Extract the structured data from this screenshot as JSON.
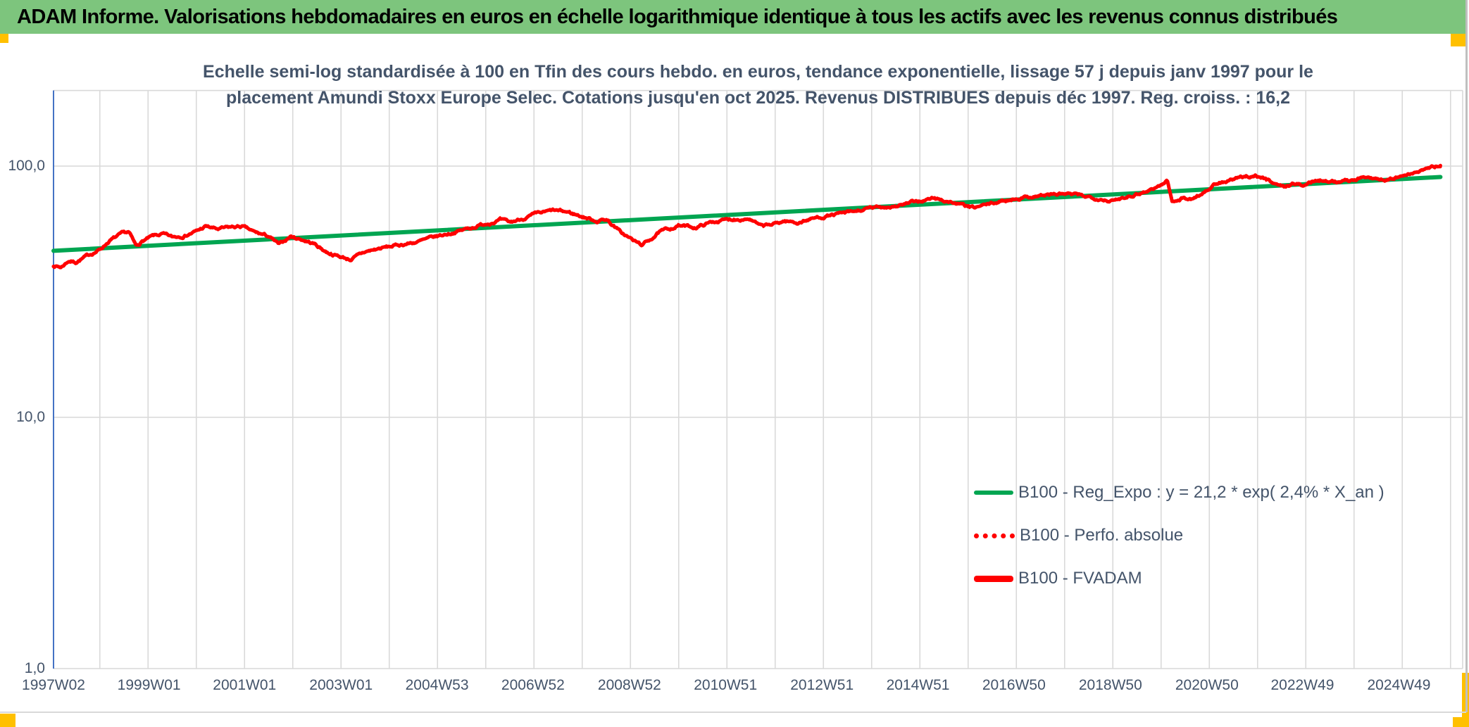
{
  "banner": {
    "title": "ADAM Informe. Valorisations hebdomadaires en euros en échelle logarithmique identique à tous les actifs avec les revenus connus distribués",
    "bg_color": "#7DC57D",
    "text_color": "#000000"
  },
  "accent_color": "#FFC000",
  "colors": {
    "text": "#44546A",
    "grid": "#D9D9D9",
    "y_axis_line": "#4472C4",
    "red": "#FF0000",
    "green": "#00A551"
  },
  "chart_data": {
    "type": "line",
    "title_lines": [
      "Echelle semi-log standardisée à 100 en Tfin des cours hebdo. en euros, tendance exponentielle, lissage 57 j depuis janv 1997 pour le",
      "placement Amundi Stoxx Europe Selec. Cotations jusqu'en oct 2025. Revenus DISTRIBUES depuis déc 1997. Reg. croiss. : 16,2"
    ],
    "x_axis": {
      "label_type": "ISO week (yearWweek)",
      "ticks": [
        {
          "label": "1997W02",
          "year": 1997.04
        },
        {
          "label": "1999W01",
          "year": 1999.02
        },
        {
          "label": "2001W01",
          "year": 2001.0
        },
        {
          "label": "2003W01",
          "year": 2003.0
        },
        {
          "label": "2004W53",
          "year": 2004.99
        },
        {
          "label": "2006W52",
          "year": 2006.98
        },
        {
          "label": "2008W52",
          "year": 2008.98
        },
        {
          "label": "2010W51",
          "year": 2010.97
        },
        {
          "label": "2012W51",
          "year": 2012.97
        },
        {
          "label": "2014W51",
          "year": 2014.96
        },
        {
          "label": "2016W50",
          "year": 2016.95
        },
        {
          "label": "2018W50",
          "year": 2018.95
        },
        {
          "label": "2020W50",
          "year": 2020.95
        },
        {
          "label": "2022W49",
          "year": 2022.93
        },
        {
          "label": "2024W49",
          "year": 2024.93
        }
      ],
      "gridlines": "yearly, light gray, vertical"
    },
    "y_axis": {
      "scale": "log10",
      "range": [
        1,
        200
      ],
      "ticks": [
        {
          "label": "1,0",
          "value": 1
        },
        {
          "label": "10,0",
          "value": 10
        },
        {
          "label": "100,0",
          "value": 100
        }
      ]
    },
    "legend_position": "inside lower right",
    "series": [
      {
        "name": "B100 - Reg_Expo : y = 21,2 * exp( 2,4% * X_an )",
        "color": "#00A551",
        "style": "solid",
        "kind": "exponential trend (straight on log scale)",
        "points": [
          [
            1997.04,
            46.0
          ],
          [
            2025.79,
            90.5
          ]
        ]
      },
      {
        "name": "B100 - Perfo. absolue",
        "color": "#FF0000",
        "style": "dotted",
        "kind": "line",
        "note": "superposée à (cachée derrière) B100 - FVADAM",
        "points_same_as": "B100 - FVADAM"
      },
      {
        "name": "B100 - FVADAM",
        "color": "#FF0000",
        "style": "solid",
        "kind": "weekly line, base 100",
        "points": [
          [
            1997.04,
            40.2
          ],
          [
            1997.2,
            39.6
          ],
          [
            1997.35,
            42.0
          ],
          [
            1997.5,
            41.5
          ],
          [
            1997.8,
            44.5
          ],
          [
            1998.0,
            46.5
          ],
          [
            1998.2,
            50.5
          ],
          [
            1998.45,
            53.5
          ],
          [
            1998.6,
            54.5
          ],
          [
            1998.75,
            48.0
          ],
          [
            1998.9,
            50.5
          ],
          [
            1999.1,
            52.5
          ],
          [
            1999.3,
            53.5
          ],
          [
            1999.5,
            52.0
          ],
          [
            1999.75,
            53.0
          ],
          [
            2000.0,
            55.0
          ],
          [
            2000.2,
            57.5
          ],
          [
            2000.45,
            56.0
          ],
          [
            2000.7,
            57.0
          ],
          [
            2000.95,
            57.5
          ],
          [
            2001.2,
            54.5
          ],
          [
            2001.5,
            52.5
          ],
          [
            2001.72,
            48.5
          ],
          [
            2001.95,
            52.5
          ],
          [
            2002.2,
            51.0
          ],
          [
            2002.45,
            49.0
          ],
          [
            2002.7,
            45.5
          ],
          [
            2003.0,
            43.5
          ],
          [
            2003.2,
            42.5
          ],
          [
            2003.5,
            45.5
          ],
          [
            2003.8,
            47.0
          ],
          [
            2004.2,
            48.5
          ],
          [
            2004.6,
            50.0
          ],
          [
            2005.0,
            52.5
          ],
          [
            2005.5,
            55.5
          ],
          [
            2006.0,
            59.0
          ],
          [
            2006.3,
            61.0
          ],
          [
            2006.5,
            59.5
          ],
          [
            2007.0,
            64.0
          ],
          [
            2007.4,
            66.5
          ],
          [
            2007.7,
            65.5
          ],
          [
            2008.0,
            63.0
          ],
          [
            2008.3,
            60.5
          ],
          [
            2008.5,
            61.5
          ],
          [
            2008.8,
            54.5
          ],
          [
            2009.1,
            50.0
          ],
          [
            2009.25,
            48.5
          ],
          [
            2009.6,
            54.5
          ],
          [
            2010.0,
            58.0
          ],
          [
            2010.35,
            57.0
          ],
          [
            2010.7,
            60.0
          ],
          [
            2011.1,
            61.5
          ],
          [
            2011.45,
            62.0
          ],
          [
            2011.7,
            57.5
          ],
          [
            2011.95,
            58.5
          ],
          [
            2012.2,
            60.5
          ],
          [
            2012.45,
            59.5
          ],
          [
            2012.8,
            62.0
          ],
          [
            2013.2,
            64.0
          ],
          [
            2013.6,
            65.5
          ],
          [
            2014.0,
            68.0
          ],
          [
            2014.5,
            69.5
          ],
          [
            2015.0,
            72.5
          ],
          [
            2015.3,
            74.5
          ],
          [
            2015.7,
            71.5
          ],
          [
            2016.1,
            68.0
          ],
          [
            2016.5,
            71.0
          ],
          [
            2017.0,
            74.5
          ],
          [
            2017.5,
            76.5
          ],
          [
            2018.0,
            77.5
          ],
          [
            2018.4,
            76.0
          ],
          [
            2018.8,
            74.0
          ],
          [
            2019.0,
            72.5
          ],
          [
            2019.3,
            76.0
          ],
          [
            2019.7,
            79.5
          ],
          [
            2020.0,
            84.0
          ],
          [
            2020.13,
            87.5
          ],
          [
            2020.23,
            72.0
          ],
          [
            2020.45,
            75.0
          ],
          [
            2020.6,
            73.5
          ],
          [
            2020.85,
            78.0
          ],
          [
            2021.1,
            84.0
          ],
          [
            2021.4,
            87.5
          ],
          [
            2021.7,
            90.0
          ],
          [
            2021.95,
            92.0
          ],
          [
            2022.15,
            89.0
          ],
          [
            2022.35,
            86.0
          ],
          [
            2022.55,
            82.5
          ],
          [
            2022.75,
            85.5
          ],
          [
            2022.95,
            83.5
          ],
          [
            2023.15,
            87.0
          ],
          [
            2023.4,
            88.5
          ],
          [
            2023.65,
            87.0
          ],
          [
            2023.9,
            87.5
          ],
          [
            2024.1,
            89.5
          ],
          [
            2024.35,
            90.5
          ],
          [
            2024.55,
            88.5
          ],
          [
            2024.8,
            89.0
          ],
          [
            2025.0,
            91.0
          ],
          [
            2025.2,
            93.0
          ],
          [
            2025.4,
            96.0
          ],
          [
            2025.6,
            98.5
          ],
          [
            2025.79,
            100.5
          ]
        ]
      }
    ]
  }
}
